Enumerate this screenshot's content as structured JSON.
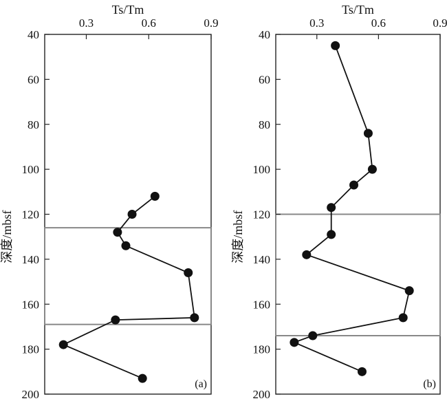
{
  "chart_data": [
    {
      "type": "scatter",
      "panel_label": "(a)",
      "xlabel": "Ts/Tm",
      "ylabel": "深度/mbsf",
      "xlim": [
        0.1,
        0.9
      ],
      "ylim": [
        40,
        200
      ],
      "x_ticks": [
        "0.3",
        "0.6",
        "0.9"
      ],
      "x_tick_values": [
        0.3,
        0.6,
        0.9
      ],
      "y_ticks": [
        "40",
        "60",
        "80",
        "100",
        "120",
        "140",
        "160",
        "180",
        "200"
      ],
      "y_tick_values": [
        40,
        60,
        80,
        100,
        120,
        140,
        160,
        180,
        200
      ],
      "series": [
        {
          "name": "Ts/Tm",
          "points": [
            {
              "x": 0.63,
              "y": 112
            },
            {
              "x": 0.52,
              "y": 120
            },
            {
              "x": 0.45,
              "y": 128
            },
            {
              "x": 0.49,
              "y": 134
            },
            {
              "x": 0.79,
              "y": 146
            },
            {
              "x": 0.82,
              "y": 166
            },
            {
              "x": 0.44,
              "y": 167
            },
            {
              "x": 0.19,
              "y": 178
            },
            {
              "x": 0.57,
              "y": 193
            }
          ]
        }
      ],
      "zone": {
        "y_top": 126,
        "y_bottom": 169
      }
    },
    {
      "type": "scatter",
      "panel_label": "(b)",
      "xlabel": "Ts/Tm",
      "ylabel": "深度/mbsf",
      "xlim": [
        0.1,
        0.9
      ],
      "ylim": [
        40,
        200
      ],
      "x_ticks": [
        "0.3",
        "0.6",
        "0.9"
      ],
      "x_tick_values": [
        0.3,
        0.6,
        0.9
      ],
      "y_ticks": [
        "40",
        "60",
        "80",
        "100",
        "120",
        "140",
        "160",
        "180",
        "200"
      ],
      "y_tick_values": [
        40,
        60,
        80,
        100,
        120,
        140,
        160,
        180,
        200
      ],
      "series": [
        {
          "name": "Ts/Tm",
          "points": [
            {
              "x": 0.39,
              "y": 45
            },
            {
              "x": 0.55,
              "y": 84
            },
            {
              "x": 0.57,
              "y": 100
            },
            {
              "x": 0.48,
              "y": 107
            },
            {
              "x": 0.37,
              "y": 117
            },
            {
              "x": 0.37,
              "y": 129
            },
            {
              "x": 0.25,
              "y": 138
            },
            {
              "x": 0.75,
              "y": 154
            },
            {
              "x": 0.72,
              "y": 166
            },
            {
              "x": 0.28,
              "y": 174
            },
            {
              "x": 0.19,
              "y": 177
            },
            {
              "x": 0.52,
              "y": 190
            }
          ]
        }
      ],
      "zone": {
        "y_top": 120,
        "y_bottom": 174
      }
    }
  ]
}
